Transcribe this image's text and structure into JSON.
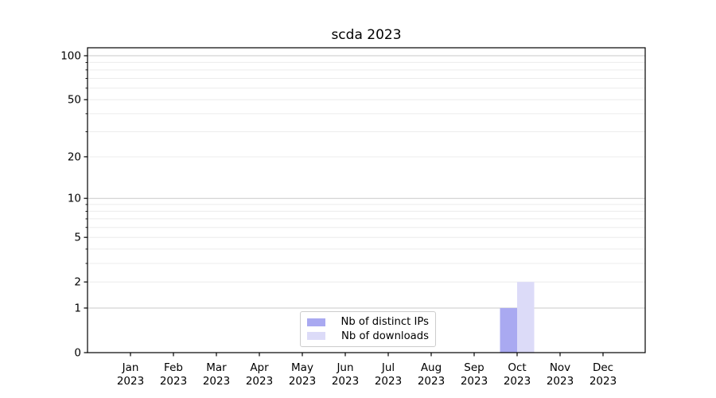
{
  "chart_data": {
    "type": "bar",
    "title": "scda 2023",
    "categories": [
      "Jan",
      "Feb",
      "Mar",
      "Apr",
      "May",
      "Jun",
      "Jul",
      "Aug",
      "Sep",
      "Oct",
      "Nov",
      "Dec"
    ],
    "category_sublabels": [
      "2023",
      "2023",
      "2023",
      "2023",
      "2023",
      "2023",
      "2023",
      "2023",
      "2023",
      "2023",
      "2023",
      "2023"
    ],
    "series": [
      {
        "name": "Nb of distinct IPs",
        "color": "#a9a9f1",
        "values": [
          0,
          0,
          0,
          0,
          0,
          0,
          0,
          0,
          0,
          1,
          0,
          0
        ]
      },
      {
        "name": "Nb of downloads",
        "color": "#dcdbf8",
        "values": [
          0,
          0,
          0,
          0,
          0,
          0,
          0,
          0,
          0,
          2,
          0,
          0
        ]
      }
    ],
    "xlabel": "",
    "ylabel": "",
    "y_axis": {
      "scale": "log1p",
      "range": [
        0,
        113
      ],
      "tick_values": [
        0,
        1,
        2,
        5,
        10,
        20,
        50,
        100
      ],
      "tick_labels": [
        "0",
        "1",
        "2",
        "5",
        "10",
        "20",
        "50",
        "100"
      ],
      "minor_tick_values": [
        3,
        4,
        6,
        7,
        8,
        9,
        30,
        40,
        60,
        70,
        80,
        90
      ]
    },
    "grid": {
      "enabled": true,
      "major_values": [
        1,
        10,
        100
      ],
      "minor_values": [
        2,
        3,
        4,
        5,
        6,
        7,
        8,
        9,
        20,
        30,
        40,
        50,
        60,
        70,
        80,
        90
      ],
      "major_color": "#c9c9c9",
      "minor_color": "#ececec"
    },
    "legend": {
      "position": "lower center",
      "entries": [
        "Nb of distinct IPs",
        "Nb of downloads"
      ]
    },
    "colors": {
      "spine": "#000000",
      "tick_text": "#000000",
      "background": "#ffffff"
    }
  }
}
